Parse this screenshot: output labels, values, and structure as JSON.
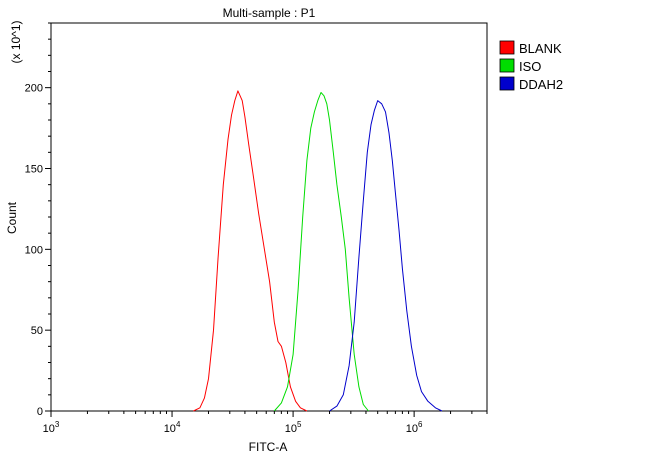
{
  "chart_data": {
    "type": "line",
    "title": "Multi-sample : P1",
    "xlabel": "FITC-A",
    "ylabel": "Count",
    "y_multiplier_label": "(x 10^1)",
    "x_scale": "log",
    "xlim": [
      1000,
      4000000
    ],
    "ylim": [
      0,
      240
    ],
    "x_ticks": [
      {
        "value": 1000,
        "base": "10",
        "exp": "3"
      },
      {
        "value": 10000,
        "base": "10",
        "exp": "4"
      },
      {
        "value": 100000,
        "base": "10",
        "exp": "5"
      },
      {
        "value": 1000000,
        "base": "10",
        "exp": "6"
      }
    ],
    "y_ticks": [
      0,
      50,
      100,
      150,
      200
    ],
    "grid": false,
    "legend_position": "top-right",
    "series": [
      {
        "name": "BLANK",
        "color": "#ff0000",
        "x": [
          15000,
          17000,
          18500,
          20000,
          22000,
          24000,
          26500,
          29000,
          31000,
          33000,
          35000,
          36500,
          38000,
          40000,
          43000,
          47000,
          52000,
          58000,
          64000,
          70000,
          75000,
          80000,
          87000,
          95000,
          105000,
          115000,
          130000
        ],
        "y": [
          0,
          2,
          8,
          20,
          50,
          95,
          140,
          168,
          183,
          192,
          198,
          195,
          192,
          182,
          165,
          145,
          122,
          100,
          80,
          55,
          43,
          40,
          30,
          15,
          6,
          2,
          0
        ]
      },
      {
        "name": "ISO",
        "color": "#00dd00",
        "x": [
          70000,
          80000,
          90000,
          100000,
          110000,
          120000,
          130000,
          140000,
          150000,
          160000,
          170000,
          180000,
          190000,
          200000,
          215000,
          230000,
          250000,
          270000,
          290000,
          320000,
          350000,
          380000,
          420000
        ],
        "y": [
          0,
          5,
          15,
          35,
          75,
          120,
          155,
          175,
          185,
          192,
          197,
          195,
          190,
          180,
          160,
          140,
          120,
          100,
          70,
          35,
          15,
          4,
          0
        ]
      },
      {
        "name": "DDAH2",
        "color": "#0000cc",
        "x": [
          200000,
          230000,
          260000,
          290000,
          320000,
          350000,
          380000,
          410000,
          440000,
          470000,
          500000,
          540000,
          580000,
          620000,
          660000,
          700000,
          750000,
          800000,
          870000,
          950000,
          1050000,
          1150000,
          1300000,
          1500000,
          1700000
        ],
        "y": [
          0,
          3,
          10,
          28,
          55,
          95,
          130,
          160,
          177,
          186,
          192,
          190,
          185,
          172,
          155,
          135,
          112,
          88,
          62,
          40,
          22,
          12,
          6,
          2,
          0
        ]
      }
    ]
  }
}
